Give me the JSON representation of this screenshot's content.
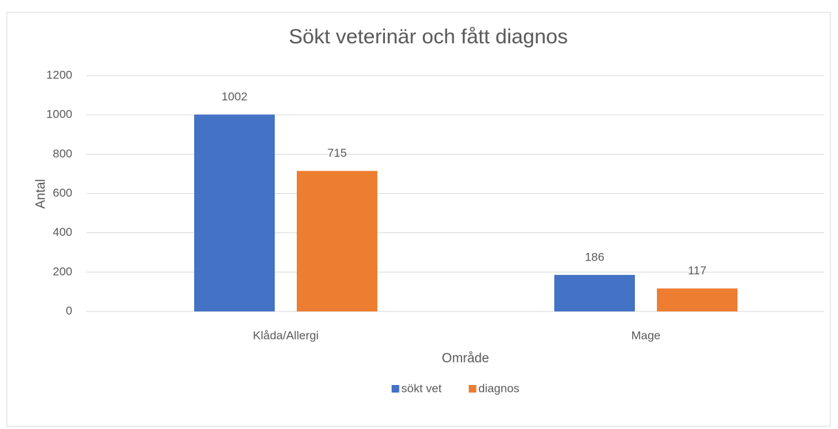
{
  "chart_data": {
    "type": "bar",
    "title": "Sökt veterinär och fått diagnos",
    "categories": [
      "Klåda/Allergi",
      "Mage"
    ],
    "series": [
      {
        "name": "sökt vet",
        "color": "#4472c4",
        "values": [
          1002,
          186
        ]
      },
      {
        "name": "diagnos",
        "color": "#ed7d31",
        "values": [
          715,
          117
        ]
      }
    ],
    "ylim": [
      0,
      1200
    ],
    "yticks": [
      0,
      200,
      400,
      600,
      800,
      1000,
      1200
    ],
    "xlabel": "Område",
    "ylabel": "Antal",
    "grid": true,
    "legend": "bottom"
  }
}
